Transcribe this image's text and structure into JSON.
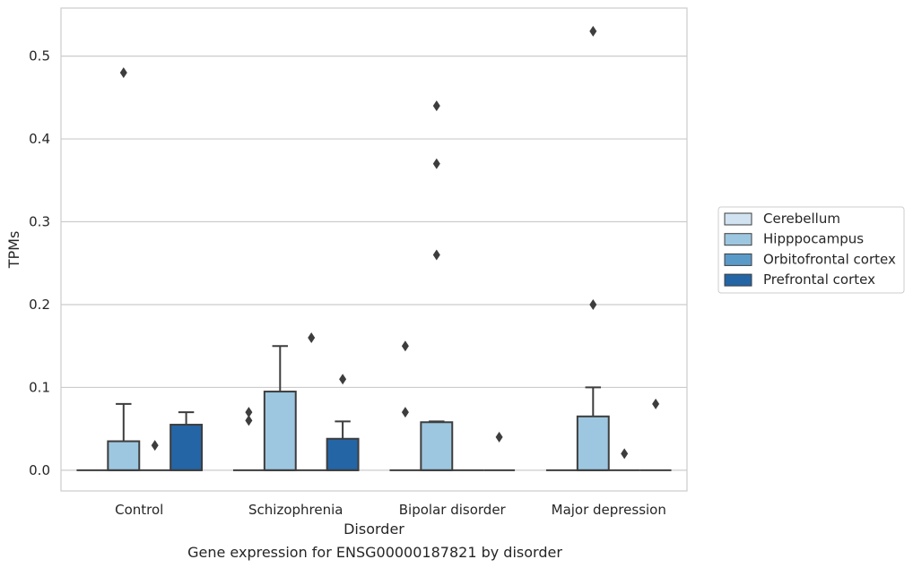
{
  "chart_data": {
    "type": "boxplot",
    "title": "Gene expression for ENSG00000187821 by disorder",
    "xlabel": "Disorder",
    "ylabel": "TPMs",
    "ylim": [
      -0.025,
      0.558
    ],
    "yticks": [
      "0.0",
      "0.1",
      "0.2",
      "0.3",
      "0.4",
      "0.5"
    ],
    "ytick_values": [
      0.0,
      0.1,
      0.2,
      0.3,
      0.4,
      0.5
    ],
    "grid": true,
    "legend_position": "right",
    "categories": [
      "Control",
      "Schizophrenia",
      "Bipolar disorder",
      "Major depression"
    ],
    "series": [
      {
        "name": "Cerebellum",
        "color": "#d1e2f1",
        "boxes": [
          {
            "q1": 0,
            "median": 0,
            "q3": 0,
            "whisker_low": 0,
            "whisker_high": 0,
            "outliers": []
          },
          {
            "q1": 0,
            "median": 0,
            "q3": 0,
            "whisker_low": 0,
            "whisker_high": 0,
            "outliers": []
          },
          {
            "q1": 0,
            "median": 0,
            "q3": 0,
            "whisker_low": 0,
            "whisker_high": 0,
            "outliers": [
              0.07,
              0.15
            ]
          },
          {
            "q1": 0,
            "median": 0,
            "q3": 0,
            "whisker_low": 0,
            "whisker_high": 0,
            "outliers": []
          }
        ]
      },
      {
        "name": "Hipppocampus",
        "color": "#9dc7e0",
        "boxes": [
          {
            "q1": 0,
            "median": 0,
            "q3": 0.035,
            "whisker_low": 0,
            "whisker_high": 0.08,
            "outliers": [
              0.48
            ]
          },
          {
            "q1": 0,
            "median": 0,
            "q3": 0.095,
            "whisker_low": 0,
            "whisker_high": 0.15,
            "outliers": []
          },
          {
            "q1": 0,
            "median": 0,
            "q3": 0.058,
            "whisker_low": 0,
            "whisker_high": 0.059,
            "outliers": [
              0.26,
              0.37,
              0.44
            ]
          },
          {
            "q1": 0,
            "median": 0,
            "q3": 0.065,
            "whisker_low": 0,
            "whisker_high": 0.1,
            "outliers": [
              0.2,
              0.53
            ]
          }
        ]
      },
      {
        "name": "Orbitofrontal cortex",
        "color": "#5a9ac9",
        "boxes": [
          {
            "q1": 0,
            "median": 0,
            "q3": 0,
            "whisker_low": 0,
            "whisker_high": 0,
            "outliers": [
              0.03
            ]
          },
          {
            "q1": 0,
            "median": 0,
            "q3": 0,
            "whisker_low": 0,
            "whisker_high": 0,
            "outliers": [
              0.16
            ]
          },
          {
            "q1": 0,
            "median": 0,
            "q3": 0,
            "whisker_low": 0,
            "whisker_high": 0,
            "outliers": []
          },
          {
            "q1": 0,
            "median": 0,
            "q3": 0,
            "whisker_low": 0,
            "whisker_high": 0,
            "outliers": [
              0.02
            ]
          }
        ]
      },
      {
        "name": "Prefrontal cortex",
        "color": "#2465a6",
        "boxes": [
          {
            "q1": 0,
            "median": 0,
            "q3": 0.055,
            "whisker_low": 0,
            "whisker_high": 0.07,
            "outliers": []
          },
          {
            "q1": 0,
            "median": 0,
            "q3": 0.038,
            "whisker_low": 0,
            "whisker_high": 0.059,
            "outliers": [
              0.11
            ]
          },
          {
            "q1": 0,
            "median": 0,
            "q3": 0,
            "whisker_low": 0,
            "whisker_high": 0,
            "outliers": [
              0.04
            ]
          },
          {
            "q1": 0,
            "median": 0,
            "q3": 0,
            "whisker_low": 0,
            "whisker_high": 0,
            "outliers": [
              0.08
            ]
          }
        ]
      }
    ],
    "extra_outliers": [
      {
        "category_index": 1,
        "series_index": 0,
        "values": [
          0.06,
          0.07
        ]
      }
    ]
  }
}
